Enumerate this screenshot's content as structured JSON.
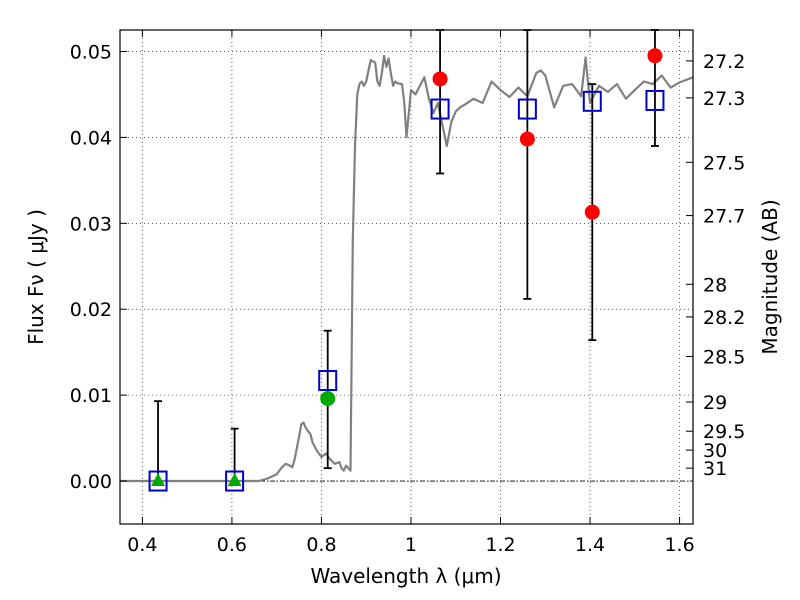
{
  "chart_data": {
    "type": "scatter",
    "xlabel": "Wavelength  λ (μm)",
    "ylabel": "Flux  Fν  ( μJy )",
    "ylabel_right": "Magnitude (AB)",
    "xlim": [
      0.35,
      1.63
    ],
    "ylim": [
      -0.005,
      0.0525
    ],
    "x_ticks": [
      0.4,
      0.6,
      0.8,
      1.0,
      1.2,
      1.4,
      1.6
    ],
    "x_tick_labels": [
      "0.4",
      "0.6",
      "0.8",
      "1",
      "1.2",
      "1.4",
      "1.6"
    ],
    "y_ticks": [
      0.0,
      0.01,
      0.02,
      0.03,
      0.04,
      0.05
    ],
    "y_tick_labels": [
      "0.00",
      "0.01",
      "0.02",
      "0.03",
      "0.04",
      "0.05"
    ],
    "right_ticks": [
      {
        "label": "27.2",
        "flux": 0.0489
      },
      {
        "label": "27.3",
        "flux": 0.0446
      },
      {
        "label": "27.5",
        "flux": 0.0371
      },
      {
        "label": "27.7",
        "flux": 0.0309
      },
      {
        "label": "28",
        "flux": 0.0229
      },
      {
        "label": "28.2",
        "flux": 0.0191
      },
      {
        "label": "28.5",
        "flux": 0.0145
      },
      {
        "label": "29",
        "flux": 0.0092
      },
      {
        "label": "29.5",
        "flux": 0.0058
      },
      {
        "label": "30",
        "flux": 0.0036
      },
      {
        "label": "31",
        "flux": 0.0015
      }
    ],
    "grid": true,
    "zero_line": true,
    "colors": {
      "model": "#808080",
      "observed": "#ff0000",
      "green": "#00aa00",
      "synthetic": "#0000cc",
      "errorbar": "#000000"
    },
    "series": [
      {
        "marker": "circle",
        "color": "#ff0000",
        "points": [
          {
            "x": 1.065,
            "y": 0.0468
          },
          {
            "x": 1.26,
            "y": 0.0398
          },
          {
            "x": 1.405,
            "y": 0.0313
          },
          {
            "x": 1.545,
            "y": 0.0495
          }
        ]
      },
      {
        "marker": "triangle",
        "color": "#00aa00",
        "points": [
          {
            "x": 0.435,
            "y": 0.0
          },
          {
            "x": 0.606,
            "y": 0.0
          }
        ]
      },
      {
        "marker": "circle",
        "color": "#00aa00",
        "points": [
          {
            "x": 0.814,
            "y": 0.0096
          }
        ]
      },
      {
        "marker": "square",
        "color": "#0000cc",
        "points": [
          {
            "x": 0.435,
            "y": 0.0
          },
          {
            "x": 0.606,
            "y": 0.0
          },
          {
            "x": 0.814,
            "y": 0.0117
          },
          {
            "x": 1.065,
            "y": 0.0433
          },
          {
            "x": 1.26,
            "y": 0.0433
          },
          {
            "x": 1.405,
            "y": 0.0442
          },
          {
            "x": 1.545,
            "y": 0.0443
          }
        ]
      }
    ],
    "error_bars": [
      {
        "x": 0.435,
        "low": 0.0,
        "high": 0.0093
      },
      {
        "x": 0.606,
        "low": 0.0,
        "high": 0.0061
      },
      {
        "x": 0.814,
        "low": 0.0015,
        "high": 0.0175
      },
      {
        "x": 1.065,
        "low": 0.0358,
        "high": 0.0525
      },
      {
        "x": 1.26,
        "low": 0.0212,
        "high": 0.0525
      },
      {
        "x": 1.405,
        "low": 0.0164,
        "high": 0.0462
      },
      {
        "x": 1.545,
        "low": 0.039,
        "high": 0.0525
      }
    ],
    "model_spectrum": {
      "x": [
        0.35,
        0.6,
        0.62,
        0.66,
        0.68,
        0.7,
        0.71,
        0.72,
        0.73,
        0.735,
        0.74,
        0.75,
        0.755,
        0.76,
        0.765,
        0.77,
        0.775,
        0.78,
        0.79,
        0.8,
        0.81,
        0.82,
        0.83,
        0.84,
        0.845,
        0.85,
        0.855,
        0.86,
        0.865,
        0.87,
        0.875,
        0.88,
        0.885,
        0.89,
        0.895,
        0.9,
        0.91,
        0.92,
        0.925,
        0.93,
        0.935,
        0.94,
        0.945,
        0.95,
        0.955,
        0.96,
        0.965,
        0.97,
        0.98,
        0.985,
        0.99,
        1.0,
        1.01,
        1.02,
        1.03,
        1.04,
        1.05,
        1.06,
        1.07,
        1.08,
        1.09,
        1.1,
        1.11,
        1.12,
        1.14,
        1.16,
        1.18,
        1.2,
        1.22,
        1.24,
        1.26,
        1.28,
        1.29,
        1.3,
        1.32,
        1.34,
        1.36,
        1.38,
        1.39,
        1.4,
        1.42,
        1.44,
        1.46,
        1.48,
        1.5,
        1.52,
        1.54,
        1.56,
        1.58,
        1.6,
        1.63
      ],
      "y": [
        0.0,
        0.0,
        0.0,
        0.0,
        0.0003,
        0.0008,
        0.0015,
        0.002,
        0.0018,
        0.0016,
        0.0025,
        0.0052,
        0.0066,
        0.0068,
        0.0062,
        0.0058,
        0.0055,
        0.0045,
        0.0035,
        0.0028,
        0.0032,
        0.0025,
        0.002,
        0.0022,
        0.0015,
        0.0012,
        0.0018,
        0.0015,
        0.0012,
        0.028,
        0.039,
        0.045,
        0.0462,
        0.0465,
        0.046,
        0.0465,
        0.049,
        0.0487,
        0.0465,
        0.046,
        0.0475,
        0.0495,
        0.0482,
        0.0492,
        0.0475,
        0.046,
        0.0465,
        0.0463,
        0.0462,
        0.044,
        0.04,
        0.0455,
        0.045,
        0.046,
        0.047,
        0.0445,
        0.0428,
        0.044,
        0.0415,
        0.039,
        0.0418,
        0.043,
        0.0435,
        0.0438,
        0.0445,
        0.044,
        0.0465,
        0.0455,
        0.0447,
        0.0458,
        0.0448,
        0.0475,
        0.0478,
        0.0472,
        0.0435,
        0.046,
        0.0462,
        0.0448,
        0.0493,
        0.044,
        0.046,
        0.0453,
        0.0462,
        0.0445,
        0.0455,
        0.0465,
        0.0462,
        0.0472,
        0.0458,
        0.0464,
        0.047
      ]
    }
  }
}
